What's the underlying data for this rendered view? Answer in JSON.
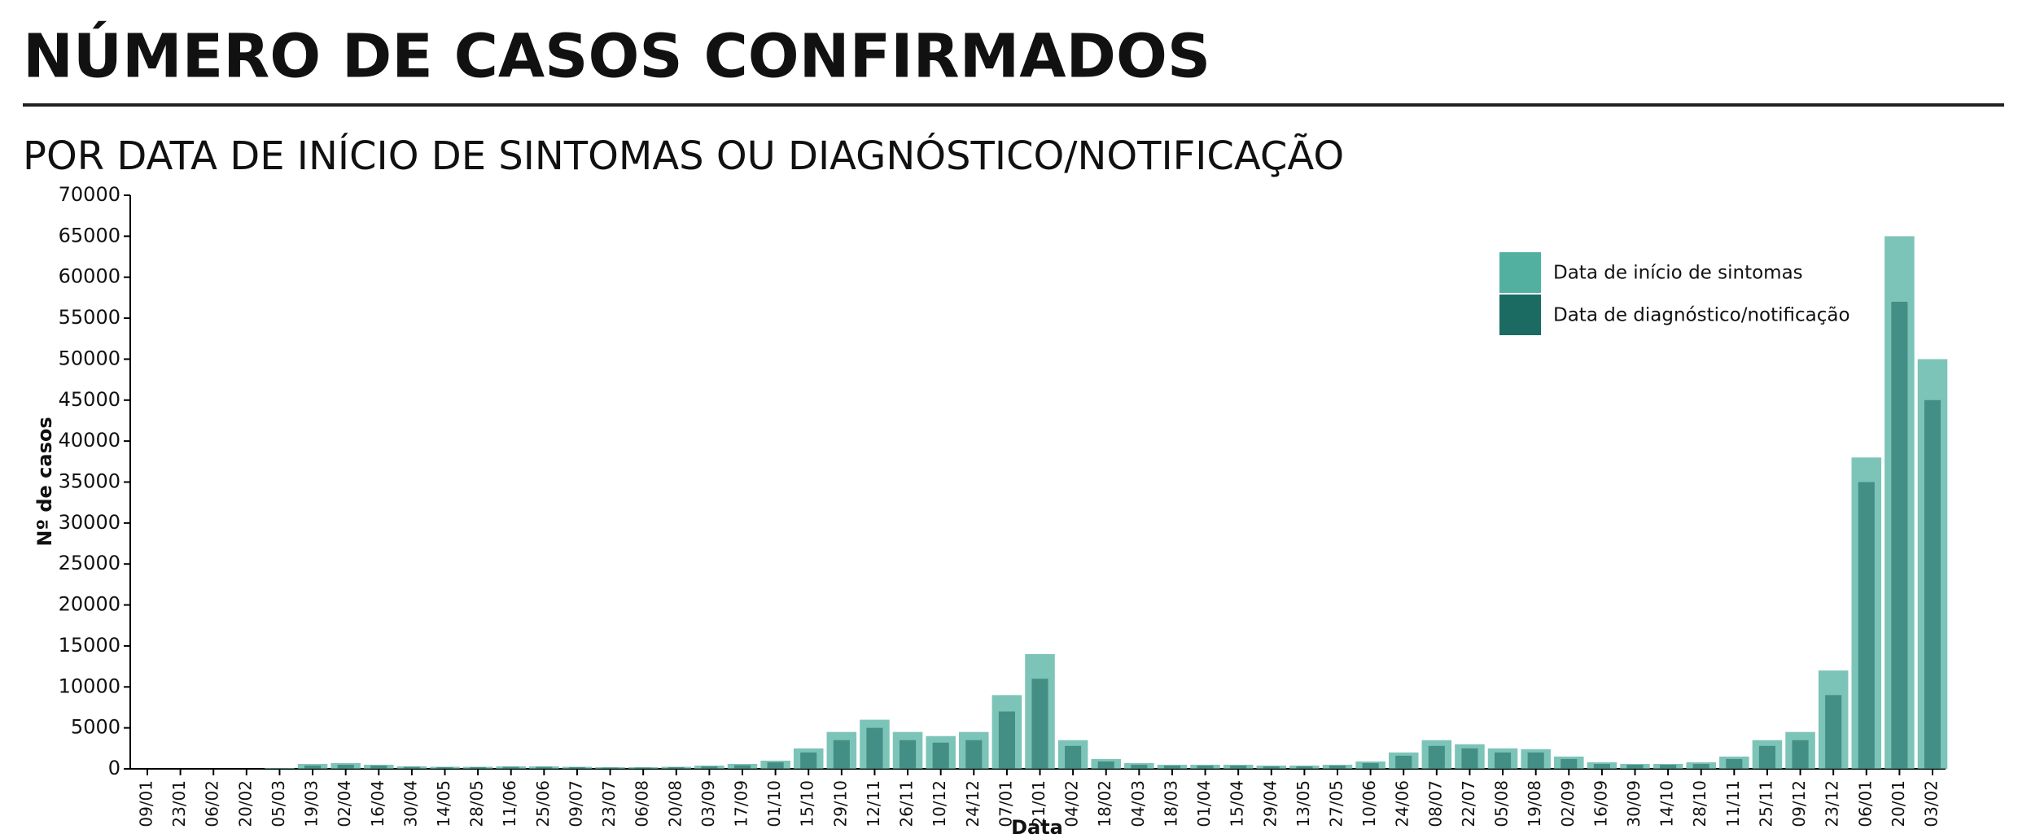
{
  "chart_data": {
    "type": "bar",
    "title": "NÚMERO DE CASOS CONFIRMADOS",
    "subtitle": "POR DATA DE INÍCIO DE SINTOMAS OU DIAGNÓSTICO/NOTIFICAÇÃO",
    "x_label": "Data",
    "y_label": "Nº de casos",
    "categories": [
      "09/01",
      "23/01",
      "06/02",
      "20/02",
      "05/03",
      "19/03",
      "02/04",
      "16/04",
      "30/04",
      "14/05",
      "28/05",
      "11/06",
      "25/06",
      "09/07",
      "23/07",
      "06/08",
      "20/08",
      "03/09",
      "17/09",
      "01/10",
      "15/10",
      "29/10",
      "12/11",
      "26/11",
      "10/12",
      "24/12",
      "07/01",
      "21/01",
      "04/02",
      "18/02",
      "04/03",
      "18/03",
      "01/04",
      "15/04",
      "29/04",
      "13/05",
      "27/05",
      "10/06",
      "24/06",
      "08/07",
      "22/07",
      "05/08",
      "19/08",
      "02/09",
      "16/09",
      "30/09",
      "14/10",
      "28/10",
      "11/11",
      "25/11",
      "09/12",
      "23/12",
      "06/01",
      "20/01",
      "03/02"
    ],
    "series": [
      {
        "name": "Data de início de sintomas",
        "color": "#52b0a0",
        "values": [
          0,
          0,
          0,
          0,
          100,
          600,
          700,
          500,
          300,
          250,
          250,
          300,
          300,
          250,
          200,
          200,
          250,
          400,
          600,
          1000,
          2500,
          4500,
          6000,
          4500,
          4000,
          4500,
          9000,
          14000,
          3500,
          1200,
          700,
          500,
          500,
          500,
          400,
          400,
          500,
          900,
          2000,
          3500,
          3000,
          2500,
          2400,
          1500,
          800,
          600,
          600,
          800,
          1500,
          3500,
          4500,
          12000,
          38000,
          65000,
          50000
        ]
      },
      {
        "name": "Data de diagnóstico/notificação",
        "color": "#1c6b62",
        "values": [
          0,
          0,
          0,
          0,
          50,
          400,
          500,
          400,
          250,
          200,
          200,
          250,
          250,
          200,
          150,
          150,
          200,
          300,
          450,
          800,
          2000,
          3500,
          5000,
          3500,
          3200,
          3500,
          7000,
          11000,
          2800,
          900,
          500,
          400,
          400,
          400,
          300,
          300,
          400,
          700,
          1600,
          2800,
          2500,
          2000,
          2000,
          1200,
          600,
          500,
          500,
          600,
          1200,
          2800,
          3500,
          9000,
          35000,
          57000,
          45000
        ]
      }
    ],
    "ylim": [
      0,
      70000
    ],
    "yticks": [
      0,
      5000,
      10000,
      15000,
      20000,
      25000,
      30000,
      35000,
      40000,
      45000,
      50000,
      55000,
      60000,
      65000,
      70000
    ],
    "legend": "top-right"
  }
}
